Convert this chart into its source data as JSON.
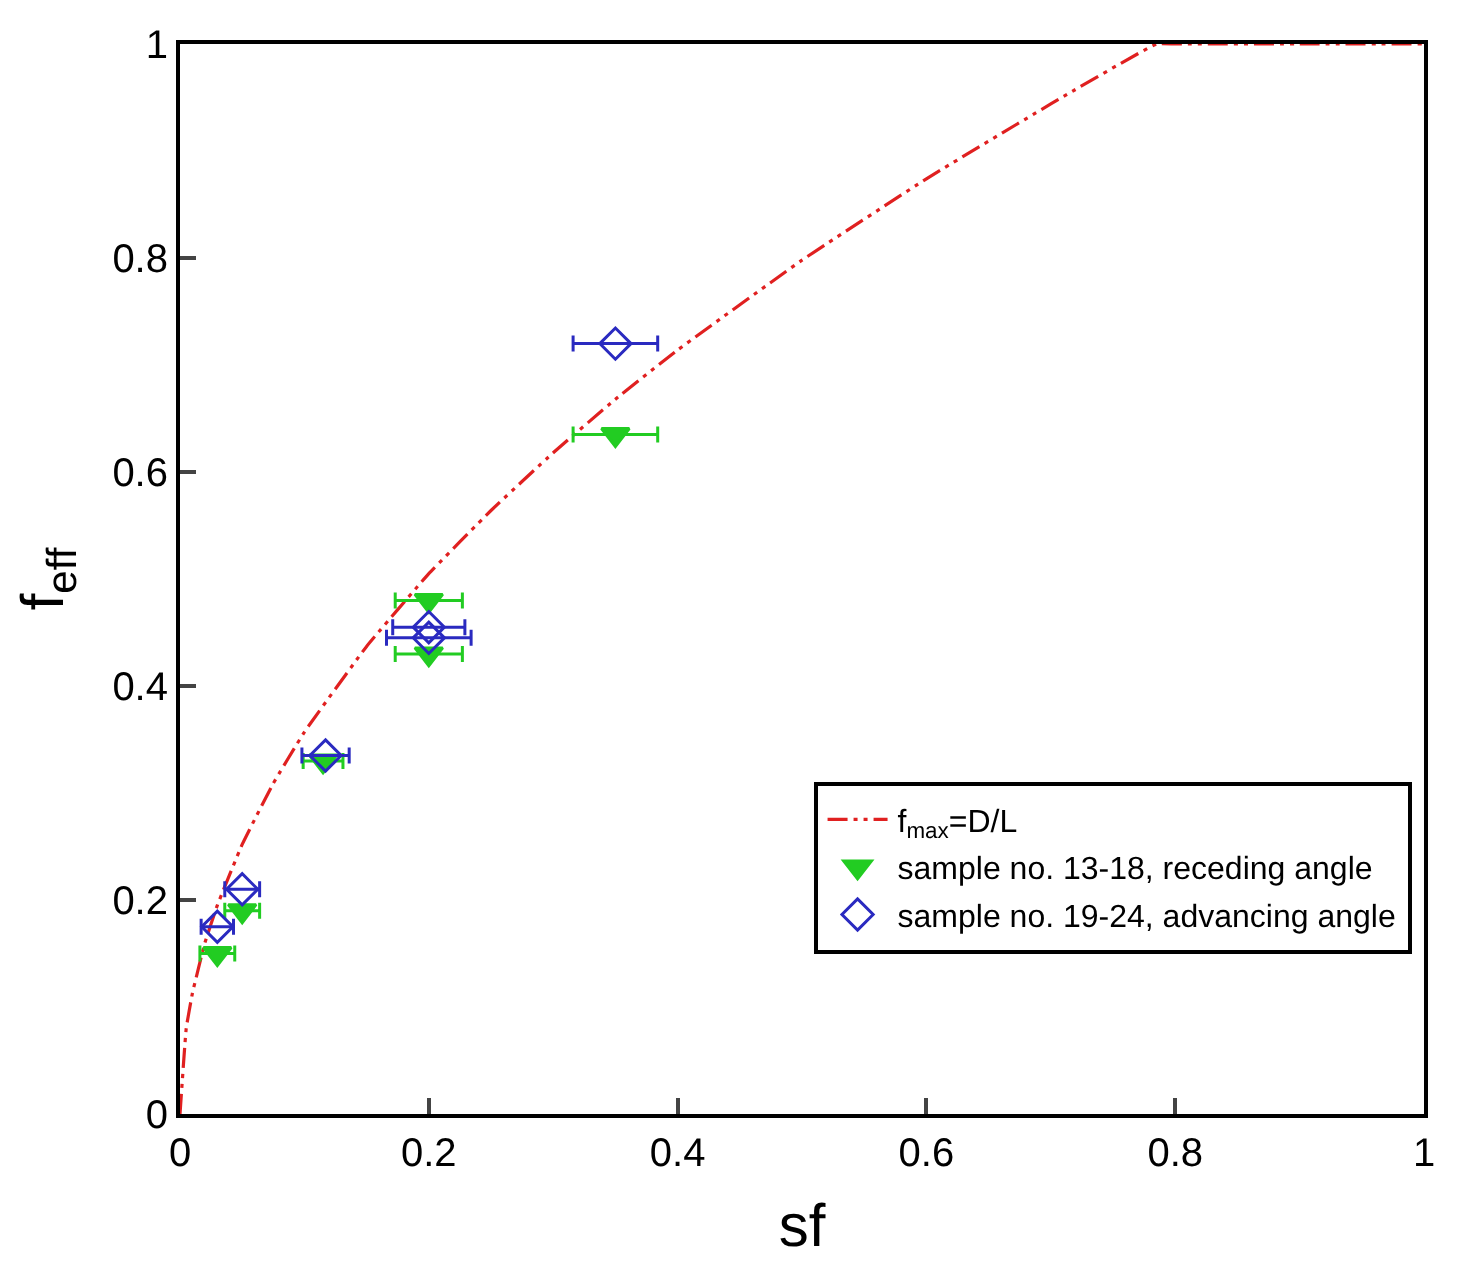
{
  "chart_data": {
    "type": "scatter",
    "xlabel": "sf",
    "ylabel": "f$_{eff}$",
    "xlim": [
      0,
      1
    ],
    "ylim": [
      0,
      1
    ],
    "xticks": [
      0,
      0.2,
      0.4,
      0.6,
      0.8,
      1
    ],
    "yticks": [
      0,
      0.2,
      0.4,
      0.6,
      0.8,
      1
    ],
    "legend": "bottom right",
    "series": [
      {
        "name": "f$_{max}$=D/L",
        "type": "line",
        "color": "#e02020",
        "line_style": "dashed",
        "marker": "none",
        "x": [
          0,
          0.005,
          0.01,
          0.02,
          0.03,
          0.05,
          0.075,
          0.1,
          0.15,
          0.2,
          0.25,
          0.3,
          0.35,
          0.4,
          0.5,
          0.6,
          0.7,
          0.785,
          0.8,
          0.9,
          1
        ],
        "values": [
          0,
          0.08,
          0.113,
          0.16,
          0.195,
          0.252,
          0.309,
          0.357,
          0.437,
          0.505,
          0.564,
          0.618,
          0.668,
          0.714,
          0.798,
          0.874,
          0.944,
          1,
          1,
          1,
          1
        ]
      },
      {
        "name": "sample no. 13-18, receding angle",
        "color": "#22cc22",
        "marker": "triangle",
        "x": [
          0.03,
          0.05,
          0.115,
          0.2,
          0.2,
          0.35
        ],
        "values": [
          0.15,
          0.19,
          0.33,
          0.48,
          0.43,
          0.635
        ],
        "xerrors": [
          0.014,
          0.014,
          0.016,
          0.027,
          0.027,
          0.034
        ]
      },
      {
        "name": "sample no. 19-24, advancing angle",
        "color": "#2a2ac0",
        "marker": "diamond",
        "x": [
          0.03,
          0.05,
          0.117,
          0.2,
          0.2,
          0.35
        ],
        "values": [
          0.175,
          0.21,
          0.335,
          0.455,
          0.445,
          0.72
        ],
        "xerrors": [
          0.013,
          0.014,
          0.019,
          0.029,
          0.034,
          0.034
        ]
      }
    ]
  }
}
